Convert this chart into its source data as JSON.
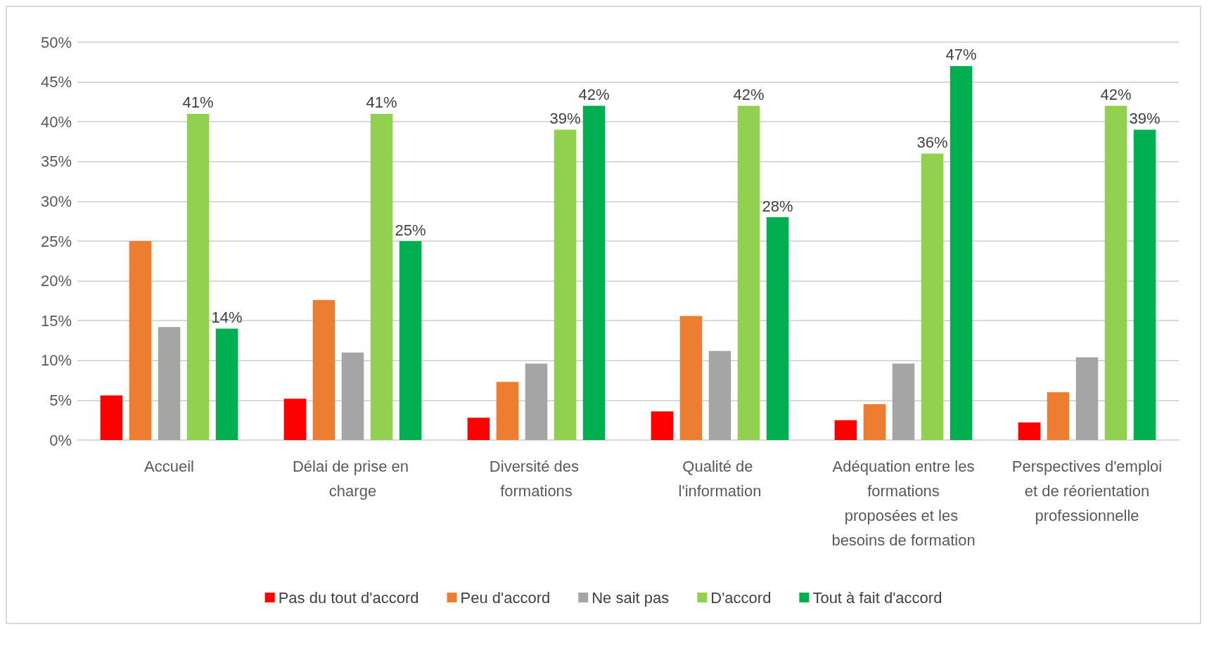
{
  "chart_data": {
    "type": "bar",
    "categories": [
      "Accueil",
      "Délai de prise en charge",
      "Diversité des formations",
      "Qualité de l'information",
      "Adéquation entre les formations proposées et les besoins de formation",
      "Perspectives d'emploi et de réorientation professionnelle"
    ],
    "series": [
      {
        "name": "Pas du tout d'accord",
        "color": "#ff0000",
        "values": [
          5.6,
          5.2,
          2.8,
          3.6,
          2.5,
          2.2
        ]
      },
      {
        "name": "Peu d'accord",
        "color": "#ed7d31",
        "values": [
          25.0,
          17.6,
          7.3,
          15.6,
          4.5,
          6.0
        ]
      },
      {
        "name": "Ne sait pas",
        "color": "#a5a5a5",
        "values": [
          14.2,
          11.0,
          9.6,
          11.2,
          9.6,
          10.4
        ]
      },
      {
        "name": "D'accord",
        "color": "#92d050",
        "values": [
          41,
          41,
          39,
          42,
          36,
          42
        ],
        "value_labels": [
          "41%",
          "41%",
          "39%",
          "42%",
          "36%",
          "42%"
        ]
      },
      {
        "name": "Tout à fait d'accord",
        "color": "#00b050",
        "values": [
          14,
          25,
          42,
          28,
          47,
          39
        ],
        "value_labels": [
          "14%",
          "25%",
          "42%",
          "28%",
          "47%",
          "39%"
        ]
      }
    ],
    "ylim": [
      0,
      50
    ],
    "yticks": [
      {
        "value": 0,
        "label": "0%"
      },
      {
        "value": 5,
        "label": "5%"
      },
      {
        "value": 10,
        "label": "10%"
      },
      {
        "value": 15,
        "label": "15%"
      },
      {
        "value": 20,
        "label": "20%"
      },
      {
        "value": 25,
        "label": "25%"
      },
      {
        "value": 30,
        "label": "30%"
      },
      {
        "value": 35,
        "label": "35%"
      },
      {
        "value": 40,
        "label": "40%"
      },
      {
        "value": 45,
        "label": "45%"
      },
      {
        "value": 50,
        "label": "50%"
      }
    ],
    "grid": "y",
    "legend": "bottom"
  }
}
